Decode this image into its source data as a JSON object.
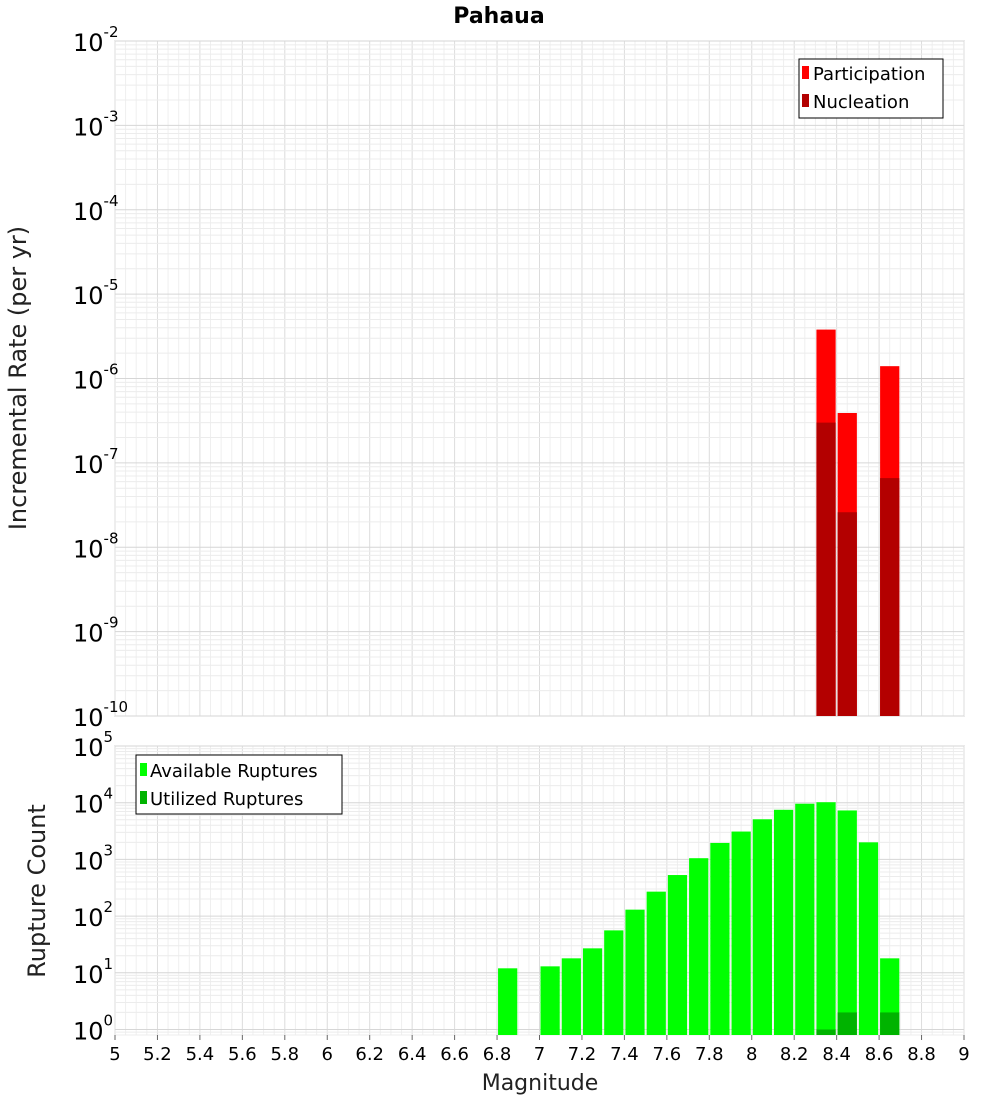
{
  "chart_data": [
    {
      "type": "bar",
      "title": "Pahaua",
      "xlabel": "",
      "ylabel": "Incremental Rate (per yr)",
      "yscale": "log",
      "xlim": [
        5,
        9
      ],
      "ylim": [
        1e-10,
        0.01
      ],
      "grid": true,
      "legend_position": "top-right",
      "bar_width": 0.1,
      "series": [
        {
          "name": "Participation",
          "color": "#ff0000",
          "x": [
            8.35,
            8.45,
            8.65
          ],
          "values": [
            3.8e-06,
            3.9e-07,
            1.4e-06
          ]
        },
        {
          "name": "Nucleation",
          "color": "#b30000",
          "x": [
            8.35,
            8.45,
            8.65
          ],
          "values": [
            3e-07,
            2.6e-08,
            6.6e-08
          ]
        }
      ]
    },
    {
      "type": "bar",
      "title": "",
      "xlabel": "Magnitude",
      "ylabel": "Rupture Count",
      "yscale": "log",
      "xlim": [
        5,
        9
      ],
      "ylim": [
        0.8,
        100000.0
      ],
      "grid": true,
      "legend_position": "top-left",
      "bar_width": 0.1,
      "x_ticks": [
        "5",
        "5.2",
        "5.4",
        "5.6",
        "5.8",
        "6",
        "6.2",
        "6.4",
        "6.6",
        "6.8",
        "7",
        "7.2",
        "7.4",
        "7.6",
        "7.8",
        "8",
        "8.2",
        "8.4",
        "8.6",
        "8.8",
        "9"
      ],
      "series": [
        {
          "name": "Available Ruptures",
          "color": "#00ff00",
          "x": [
            6.85,
            7.05,
            7.15,
            7.25,
            7.35,
            7.45,
            7.55,
            7.65,
            7.75,
            7.85,
            7.95,
            8.05,
            8.15,
            8.25,
            8.35,
            8.45,
            8.55,
            8.65
          ],
          "values": [
            12,
            13,
            18,
            27,
            56,
            130,
            270,
            530,
            1050,
            1950,
            3100,
            5100,
            7500,
            9600,
            10200,
            7300,
            2000,
            18
          ]
        },
        {
          "name": "Utilized Ruptures",
          "color": "#00b300",
          "x": [
            8.35,
            8.45,
            8.65
          ],
          "values": [
            1,
            2,
            2
          ]
        }
      ]
    }
  ]
}
